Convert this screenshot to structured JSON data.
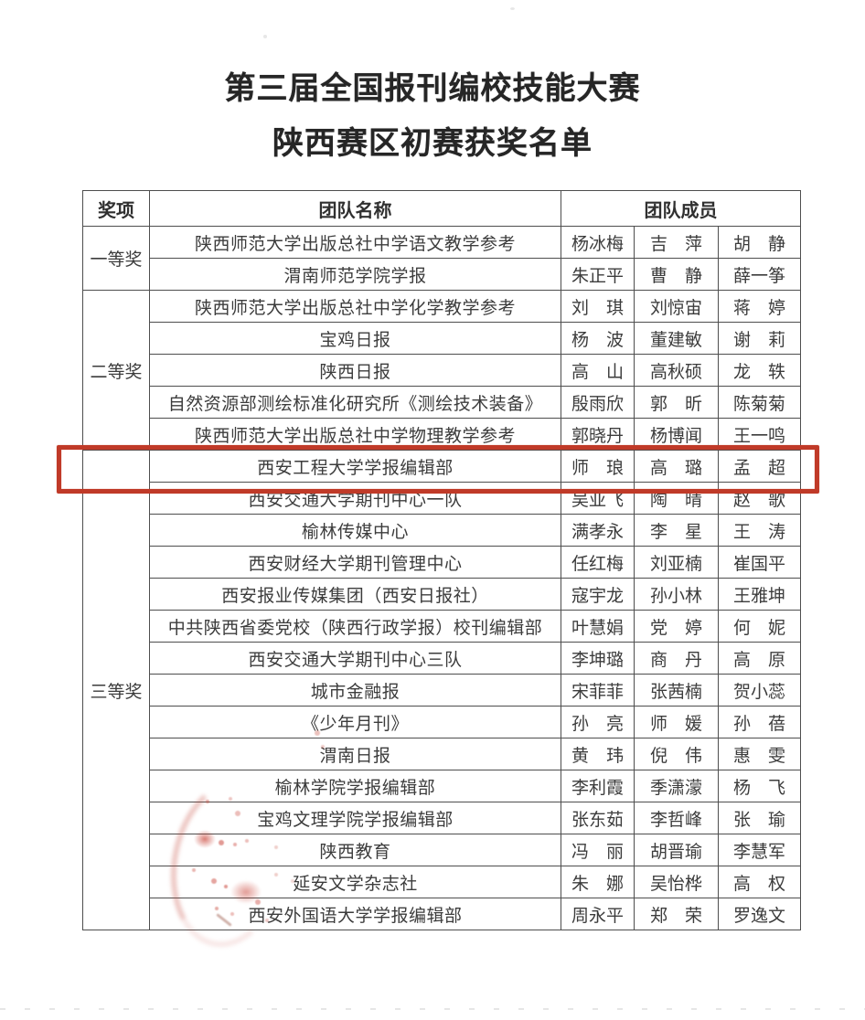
{
  "page": {
    "title_line1": "第三届全国报刊编校技能大赛",
    "title_line2": "陕西赛区初赛获奖名单"
  },
  "table": {
    "headers": {
      "award": "奖项",
      "team": "团队名称",
      "members": "团队成员"
    },
    "award_groups": [
      {
        "award": "一等奖",
        "teams": [
          {
            "name": "陕西师范大学出版总社中学语文教学参考",
            "members": [
              "杨冰梅",
              "吉　萍",
              "胡　静"
            ]
          },
          {
            "name": "渭南师范学院学报",
            "members": [
              "朱正平",
              "曹　静",
              "薛一筝"
            ]
          }
        ]
      },
      {
        "award": "二等奖",
        "teams": [
          {
            "name": "陕西师范大学出版总社中学化学教学参考",
            "members": [
              "刘　琪",
              "刘惊宙",
              "蒋　婷"
            ]
          },
          {
            "name": "宝鸡日报",
            "members": [
              "杨　波",
              "董建敏",
              "谢　莉"
            ]
          },
          {
            "name": "陕西日报",
            "members": [
              "高　山",
              "高秋硕",
              "龙　轶"
            ]
          },
          {
            "name": "自然资源部测绘标准化研究所《测绘技术装备》",
            "members": [
              "殷雨欣",
              "郭　昕",
              "陈菊菊"
            ]
          },
          {
            "name": "陕西师范大学出版总社中学物理教学参考",
            "members": [
              "郭晓丹",
              "杨博闻",
              "王一鸣"
            ]
          }
        ]
      },
      {
        "award": "三等奖",
        "teams": [
          {
            "name": "西安工程大学学报编辑部",
            "members": [
              "师　琅",
              "高　璐",
              "孟　超"
            ],
            "highlighted": true
          },
          {
            "name": "西安交通大学期刊中心一队",
            "members": [
              "吴亚飞",
              "陶　晴",
              "赵　歌"
            ]
          },
          {
            "name": "榆林传媒中心",
            "members": [
              "满孝永",
              "李　星",
              "王　涛"
            ]
          },
          {
            "name": "西安财经大学期刊管理中心",
            "members": [
              "任红梅",
              "刘亚楠",
              "崔国平"
            ]
          },
          {
            "name": "西安报业传媒集团（西安日报社）",
            "members": [
              "寇宇龙",
              "孙小林",
              "王雅坤"
            ]
          },
          {
            "name": "中共陕西省委党校（陕西行政学报）校刊编辑部",
            "members": [
              "叶慧娟",
              "党　婷",
              "何　妮"
            ]
          },
          {
            "name": "西安交通大学期刊中心三队",
            "members": [
              "李坤璐",
              "商　丹",
              "高　原"
            ]
          },
          {
            "name": "城市金融报",
            "members": [
              "宋菲菲",
              "张茜楠",
              "贺小蕊"
            ]
          },
          {
            "name": "《少年月刊》",
            "members": [
              "孙　亮",
              "师　媛",
              "孙　蓓"
            ]
          },
          {
            "name": "渭南日报",
            "members": [
              "黄　玮",
              "倪　伟",
              "惠　雯"
            ]
          },
          {
            "name": "榆林学院学报编辑部",
            "members": [
              "李利霞",
              "季潇濛",
              "杨　飞"
            ]
          },
          {
            "name": "宝鸡文理学院学报编辑部",
            "members": [
              "张东茹",
              "李哲峰",
              "张　瑜"
            ]
          },
          {
            "name": "陕西教育",
            "members": [
              "冯　丽",
              "胡晋瑜",
              "李慧军"
            ]
          },
          {
            "name": "延安文学杂志社",
            "members": [
              "朱　娜",
              "吴怡桦",
              "高　权"
            ]
          },
          {
            "name": "西安外国语大学学报编辑部",
            "members": [
              "周永平",
              "郑　荣",
              "罗逸文"
            ]
          }
        ]
      }
    ]
  },
  "annotations": {
    "highlight_box_color": "#c03a28",
    "stamp_color": "#c6463a"
  }
}
